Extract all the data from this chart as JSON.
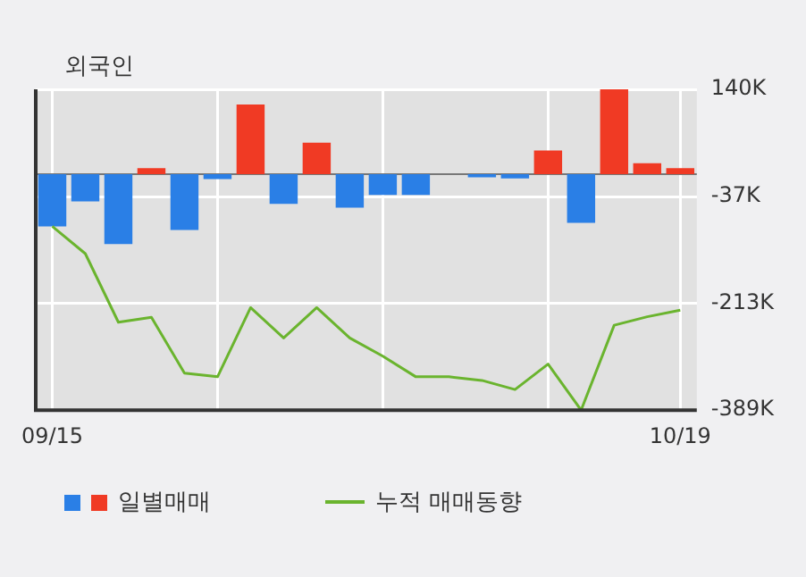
{
  "chart_data": {
    "type": "bar",
    "title": "외국인",
    "categories": [
      "09/15",
      null,
      null,
      null,
      null,
      null,
      null,
      null,
      null,
      null,
      null,
      null,
      null,
      null,
      null,
      null,
      null,
      null,
      null,
      "10/19"
    ],
    "series": [
      {
        "name": "일별매매",
        "colors": [
          "#2a7fe6",
          "#2a7fe6",
          "#2a7fe6",
          "#f03a24",
          "#2a7fe6",
          "#2a7fe6",
          "#f03a24",
          "#2a7fe6",
          "#f03a24",
          "#2a7fe6",
          "#2a7fe6",
          "#2a7fe6",
          "#2a7fe6",
          "#2a7fe6",
          "#2a7fe6",
          "#f03a24",
          "#2a7fe6",
          "#f03a24",
          "#f03a24",
          "#f03a24"
        ],
        "values": [
          -86,
          -45,
          -115,
          10,
          -92,
          -8,
          115,
          -49,
          52,
          -55,
          -34,
          -34,
          0,
          -5,
          -7,
          39,
          -80,
          140,
          18,
          10
        ]
      },
      {
        "name": "누적 매매동향",
        "type": "line",
        "color": "#6ab42e",
        "values": [
          -86,
          -131,
          -244,
          -236,
          -328,
          -334,
          -220,
          -270,
          -220,
          -270,
          -300,
          -334,
          -334,
          -340,
          -355,
          -313,
          -389,
          -249,
          -235,
          -224
        ]
      }
    ],
    "ylim": [
      -389,
      140
    ],
    "yticks": [
      {
        "value": 140,
        "label": "140K"
      },
      {
        "value": -37,
        "label": "-37K"
      },
      {
        "value": -213,
        "label": "-213K"
      },
      {
        "value": -389,
        "label": "-389K"
      }
    ],
    "grid": true,
    "legend": "bottom",
    "marker": "none",
    "line_style": "solid"
  }
}
